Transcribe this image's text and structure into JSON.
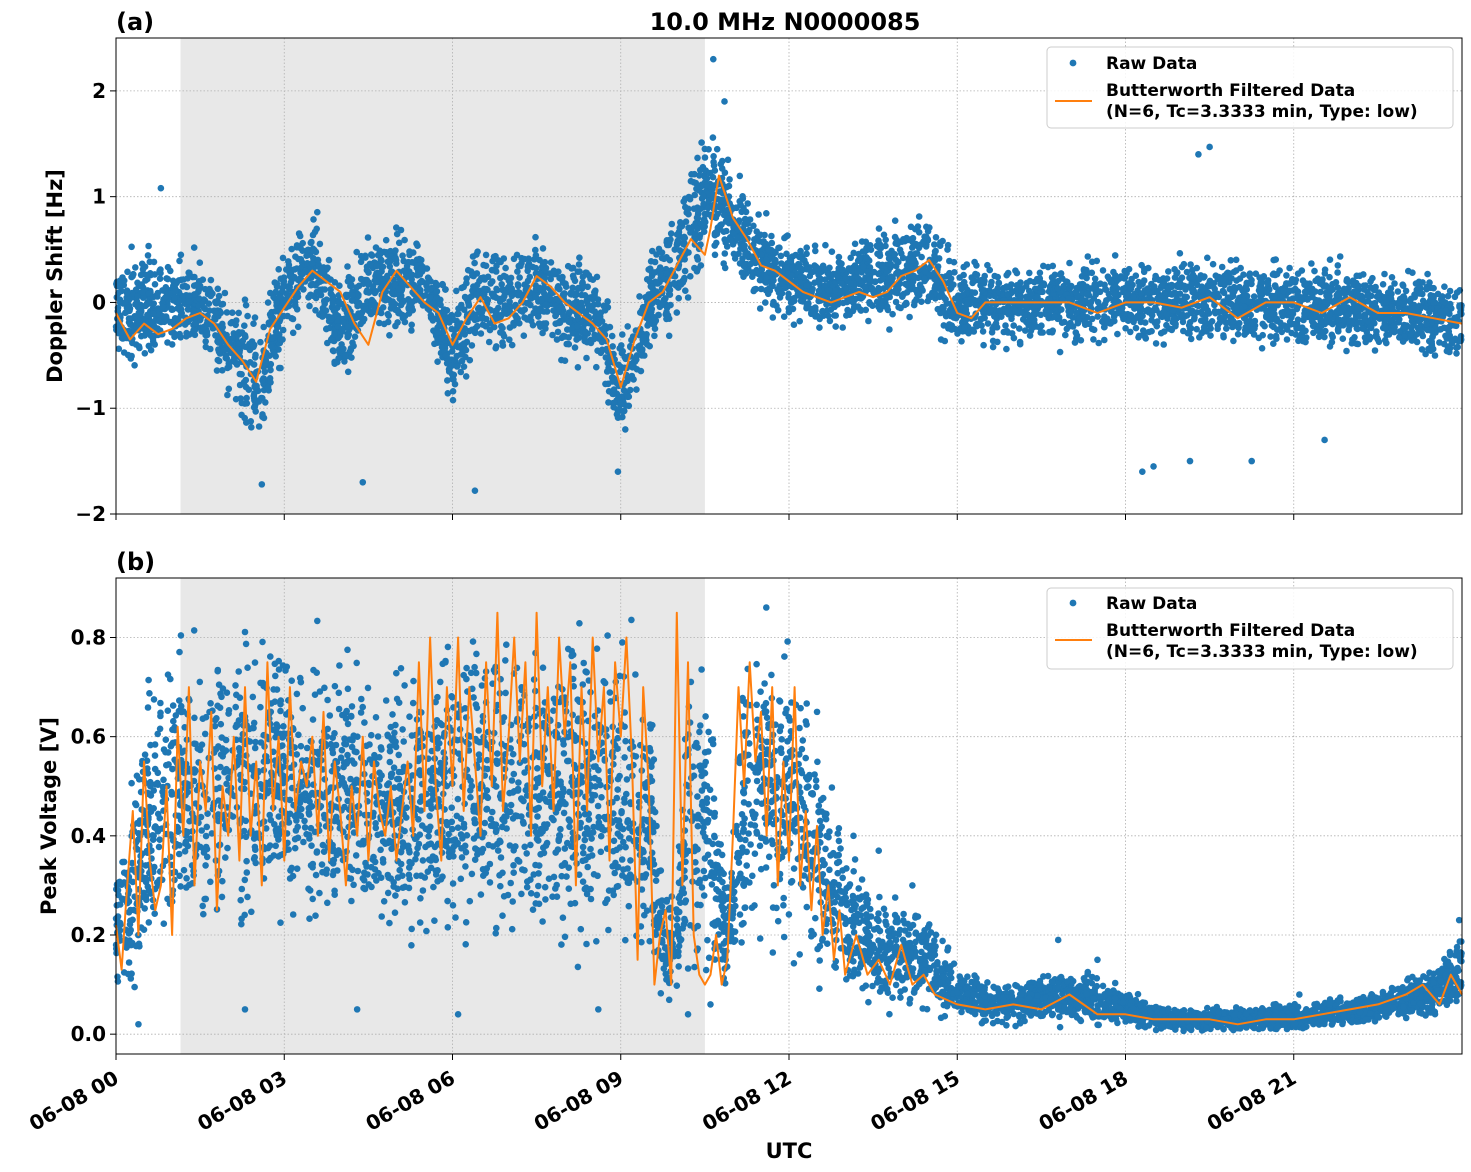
{
  "figure": {
    "title": "10.0 MHz N0000085",
    "xlabel": "UTC",
    "colors": {
      "raw": "#1f77b4",
      "filtered": "#ff7f0e",
      "shade": "#e8e8e8",
      "grid": "#b0b0b0"
    }
  },
  "legend": {
    "raw_label": "Raw Data",
    "filtered_label_line1": "Butterworth Filtered Data",
    "filtered_label_line2": "(N=6, Tc=3.3333 min, Type: low)"
  },
  "chart_data": [
    {
      "panel_label": "(a)",
      "type": "scatter",
      "title": "10.0 MHz N0000085",
      "ylabel": "Doppler Shift [Hz]",
      "xlabel": "UTC",
      "x_unit": "hours since 06-08 00:00 UTC",
      "xlim": [
        0,
        24
      ],
      "ylim": [
        -2,
        2.5
      ],
      "yticks": [
        -2,
        -1,
        0,
        1,
        2
      ],
      "ytick_labels": [
        "−2",
        "−1",
        "0",
        "1",
        "2"
      ],
      "shaded_interval": [
        1.15,
        10.5
      ],
      "grid": true,
      "legend_position": "top-right",
      "series": [
        {
          "name": "Raw Data",
          "style": "points",
          "envelope_x": [
            0,
            0.5,
            1,
            1.5,
            2,
            2.6,
            3,
            3.5,
            4,
            4.5,
            5,
            5.5,
            6,
            6.5,
            7,
            7.5,
            8,
            8.5,
            9,
            9.5,
            10,
            10.5,
            11,
            11.5,
            12,
            12.5,
            13,
            13.5,
            14,
            14.5,
            15,
            16,
            17,
            18,
            19,
            20,
            21,
            22,
            23,
            24
          ],
          "envelope_low": [
            -0.7,
            -0.7,
            -0.65,
            -0.6,
            -1.05,
            -1.55,
            -0.6,
            -0.2,
            -1.0,
            -0.4,
            -0.6,
            -0.2,
            -1.2,
            -0.6,
            -0.6,
            -0.4,
            -0.7,
            -0.6,
            -1.5,
            -0.6,
            -0.3,
            0.2,
            0.2,
            -0.2,
            -0.3,
            -0.3,
            -0.3,
            -0.3,
            -0.3,
            -0.3,
            -0.6,
            -0.5,
            -0.5,
            -0.5,
            -0.5,
            -0.5,
            -0.5,
            -0.6,
            -0.6,
            -0.7
          ],
          "envelope_high": [
            0.5,
            0.7,
            0.5,
            0.6,
            0.2,
            0.1,
            0.7,
            1.0,
            0.3,
            0.8,
            0.9,
            0.6,
            0.2,
            0.7,
            0.6,
            0.8,
            0.5,
            0.5,
            -0.2,
            0.6,
            1.0,
            1.9,
            1.4,
            0.9,
            0.7,
            0.6,
            0.6,
            0.8,
            0.9,
            1.0,
            0.5,
            0.5,
            0.5,
            0.5,
            0.6,
            0.5,
            0.5,
            0.5,
            0.4,
            0.3
          ],
          "outliers_x": [
            0.8,
            2.6,
            4.4,
            6.4,
            8.95,
            10.65,
            10.85,
            18.3,
            18.5,
            19.15,
            19.3,
            19.5,
            20.25,
            21.55
          ],
          "outliers_y": [
            1.08,
            -1.72,
            -1.7,
            -1.78,
            -1.6,
            2.3,
            1.9,
            -1.6,
            -1.55,
            -1.5,
            1.4,
            1.47,
            -1.5,
            -1.3
          ]
        },
        {
          "name": "Butterworth Filtered Data",
          "style": "line",
          "x": [
            0,
            0.25,
            0.5,
            0.75,
            1,
            1.25,
            1.5,
            1.75,
            2,
            2.25,
            2.5,
            2.75,
            3,
            3.25,
            3.5,
            3.75,
            4,
            4.25,
            4.5,
            4.75,
            5,
            5.25,
            5.5,
            5.75,
            6,
            6.25,
            6.5,
            6.75,
            7,
            7.25,
            7.5,
            7.75,
            8,
            8.25,
            8.5,
            8.75,
            9,
            9.25,
            9.5,
            9.75,
            10,
            10.25,
            10.5,
            10.6,
            10.75,
            11,
            11.25,
            11.5,
            11.75,
            12,
            12.25,
            12.5,
            12.75,
            13,
            13.25,
            13.5,
            13.75,
            14,
            14.25,
            14.5,
            14.75,
            15,
            15.25,
            15.5,
            16,
            16.5,
            17,
            17.5,
            18,
            18.5,
            19,
            19.5,
            20,
            20.5,
            21,
            21.5,
            22,
            22.5,
            23,
            23.5,
            24
          ],
          "y": [
            -0.1,
            -0.35,
            -0.2,
            -0.3,
            -0.25,
            -0.15,
            -0.1,
            -0.2,
            -0.4,
            -0.55,
            -0.75,
            -0.25,
            -0.05,
            0.15,
            0.3,
            0.2,
            0.1,
            -0.2,
            -0.4,
            0.1,
            0.3,
            0.15,
            0.0,
            -0.1,
            -0.4,
            -0.15,
            0.05,
            -0.2,
            -0.15,
            0.0,
            0.25,
            0.15,
            0.0,
            -0.1,
            -0.2,
            -0.35,
            -0.8,
            -0.35,
            0.0,
            0.1,
            0.35,
            0.6,
            0.45,
            0.7,
            1.2,
            0.8,
            0.6,
            0.35,
            0.3,
            0.2,
            0.1,
            0.05,
            0.0,
            0.05,
            0.1,
            0.05,
            0.1,
            0.25,
            0.3,
            0.4,
            0.2,
            -0.1,
            -0.15,
            0.0,
            0.0,
            0.0,
            0.0,
            -0.1,
            0.0,
            0.0,
            -0.05,
            0.05,
            -0.15,
            0.0,
            0.0,
            -0.1,
            0.05,
            -0.1,
            -0.1,
            -0.15,
            -0.2
          ]
        }
      ]
    },
    {
      "panel_label": "(b)",
      "type": "scatter",
      "ylabel": "Peak Voltage [V]",
      "xlabel": "UTC",
      "x_unit": "hours since 06-08 00:00 UTC",
      "xlim": [
        0,
        24
      ],
      "ylim": [
        -0.04,
        0.92
      ],
      "yticks": [
        0.0,
        0.2,
        0.4,
        0.6,
        0.8
      ],
      "ytick_labels": [
        "0.0",
        "0.2",
        "0.4",
        "0.6",
        "0.8"
      ],
      "xticks": [
        0,
        3,
        6,
        9,
        12,
        15,
        18,
        21
      ],
      "xtick_labels": [
        "06-08 00",
        "06-08 03",
        "06-08 06",
        "06-08 09",
        "06-08 12",
        "06-08 15",
        "06-08 18",
        "06-08 21"
      ],
      "shaded_interval": [
        1.15,
        10.5
      ],
      "grid": true,
      "legend_position": "top-right",
      "series": [
        {
          "name": "Raw Data",
          "style": "points",
          "envelope_x": [
            0,
            0.3,
            0.6,
            1,
            1.5,
            2,
            2.5,
            3,
            3.5,
            4,
            4.5,
            5,
            5.5,
            6,
            6.5,
            7,
            7.5,
            8,
            8.5,
            9,
            9.5,
            9.7,
            10,
            10.2,
            10.5,
            10.9,
            11.2,
            11.5,
            12,
            12.5,
            13,
            13.5,
            14,
            14.5,
            15,
            15.5,
            16,
            17,
            18,
            19,
            20,
            21,
            22,
            23,
            23.5,
            24
          ],
          "envelope_low": [
            0.05,
            0.05,
            0.08,
            0.1,
            0.1,
            0.12,
            0.15,
            0.15,
            0.1,
            0.15,
            0.12,
            0.1,
            0.1,
            0.12,
            0.1,
            0.1,
            0.12,
            0.1,
            0.12,
            0.1,
            0.08,
            0.05,
            0.06,
            0.05,
            0.04,
            0.08,
            0.1,
            0.1,
            0.08,
            0.05,
            0.03,
            0.03,
            0.03,
            0.02,
            0.02,
            0.01,
            0.01,
            0.01,
            0.0,
            0.0,
            0.0,
            0.0,
            0.01,
            0.02,
            0.02,
            0.03
          ],
          "envelope_high": [
            0.38,
            0.55,
            0.8,
            0.86,
            0.85,
            0.88,
            0.87,
            0.88,
            0.85,
            0.83,
            0.8,
            0.82,
            0.85,
            0.86,
            0.87,
            0.87,
            0.88,
            0.88,
            0.88,
            0.88,
            0.87,
            0.35,
            0.3,
            0.88,
            0.88,
            0.3,
            0.87,
            0.88,
            0.85,
            0.7,
            0.45,
            0.3,
            0.3,
            0.28,
            0.15,
            0.12,
            0.12,
            0.15,
            0.1,
            0.06,
            0.06,
            0.07,
            0.08,
            0.12,
            0.15,
            0.23
          ],
          "outliers_x": [
            0.4,
            2.3,
            4.3,
            6.1,
            8.6,
            10.2,
            10.6,
            12.5,
            13.15,
            13.6,
            14.2,
            16.8,
            17.5,
            21.1,
            23.95
          ],
          "outliers_y": [
            0.02,
            0.05,
            0.05,
            0.04,
            0.05,
            0.04,
            0.06,
            0.65,
            0.4,
            0.37,
            0.3,
            0.19,
            0.15,
            0.08,
            0.23
          ]
        },
        {
          "name": "Butterworth Filtered Data",
          "style": "line",
          "x": [
            0,
            0.1,
            0.2,
            0.3,
            0.4,
            0.5,
            0.6,
            0.7,
            0.8,
            0.9,
            1.0,
            1.1,
            1.2,
            1.3,
            1.4,
            1.5,
            1.6,
            1.7,
            1.8,
            1.9,
            2.0,
            2.1,
            2.2,
            2.3,
            2.4,
            2.5,
            2.6,
            2.7,
            2.8,
            2.9,
            3.0,
            3.1,
            3.2,
            3.3,
            3.4,
            3.5,
            3.6,
            3.7,
            3.8,
            3.9,
            4.0,
            4.1,
            4.2,
            4.3,
            4.4,
            4.5,
            4.6,
            4.7,
            4.8,
            4.9,
            5.0,
            5.1,
            5.2,
            5.3,
            5.4,
            5.5,
            5.6,
            5.7,
            5.8,
            5.9,
            6.0,
            6.1,
            6.2,
            6.3,
            6.4,
            6.5,
            6.6,
            6.7,
            6.8,
            6.9,
            7.0,
            7.1,
            7.2,
            7.3,
            7.4,
            7.5,
            7.6,
            7.7,
            7.8,
            7.9,
            8.0,
            8.1,
            8.2,
            8.3,
            8.4,
            8.5,
            8.6,
            8.7,
            8.8,
            8.9,
            9.0,
            9.1,
            9.2,
            9.3,
            9.4,
            9.5,
            9.6,
            9.7,
            9.8,
            9.9,
            10.0,
            10.1,
            10.2,
            10.3,
            10.4,
            10.5,
            10.6,
            10.7,
            10.8,
            10.9,
            11.0,
            11.1,
            11.2,
            11.3,
            11.4,
            11.5,
            11.6,
            11.7,
            11.8,
            11.9,
            12.0,
            12.1,
            12.2,
            12.3,
            12.4,
            12.5,
            12.6,
            12.7,
            12.8,
            12.9,
            13.0,
            13.2,
            13.4,
            13.6,
            13.8,
            14.0,
            14.2,
            14.4,
            14.6,
            14.8,
            15.0,
            15.5,
            16.0,
            16.5,
            17.0,
            17.5,
            18.0,
            18.5,
            19.0,
            19.5,
            20.0,
            20.5,
            21.0,
            21.5,
            22.0,
            22.5,
            23.0,
            23.3,
            23.6,
            23.8,
            24.0
          ],
          "y": [
            0.22,
            0.13,
            0.3,
            0.45,
            0.2,
            0.55,
            0.35,
            0.25,
            0.3,
            0.5,
            0.2,
            0.62,
            0.4,
            0.7,
            0.3,
            0.55,
            0.45,
            0.65,
            0.25,
            0.5,
            0.4,
            0.6,
            0.35,
            0.7,
            0.4,
            0.55,
            0.3,
            0.75,
            0.45,
            0.6,
            0.35,
            0.7,
            0.45,
            0.55,
            0.5,
            0.6,
            0.4,
            0.65,
            0.35,
            0.55,
            0.45,
            0.3,
            0.5,
            0.4,
            0.6,
            0.35,
            0.55,
            0.45,
            0.4,
            0.5,
            0.35,
            0.45,
            0.55,
            0.4,
            0.75,
            0.45,
            0.8,
            0.5,
            0.35,
            0.7,
            0.5,
            0.8,
            0.45,
            0.7,
            0.55,
            0.4,
            0.75,
            0.5,
            0.85,
            0.45,
            0.6,
            0.8,
            0.55,
            0.75,
            0.4,
            0.85,
            0.5,
            0.7,
            0.45,
            0.8,
            0.6,
            0.75,
            0.3,
            0.7,
            0.45,
            0.8,
            0.55,
            0.7,
            0.35,
            0.75,
            0.6,
            0.8,
            0.55,
            0.15,
            0.7,
            0.5,
            0.1,
            0.2,
            0.25,
            0.1,
            0.85,
            0.3,
            0.75,
            0.2,
            0.12,
            0.1,
            0.12,
            0.2,
            0.1,
            0.15,
            0.4,
            0.7,
            0.5,
            0.75,
            0.55,
            0.65,
            0.4,
            0.7,
            0.3,
            0.55,
            0.35,
            0.7,
            0.3,
            0.45,
            0.25,
            0.42,
            0.2,
            0.3,
            0.15,
            0.25,
            0.12,
            0.2,
            0.12,
            0.15,
            0.1,
            0.18,
            0.1,
            0.12,
            0.08,
            0.07,
            0.06,
            0.05,
            0.06,
            0.05,
            0.08,
            0.04,
            0.04,
            0.03,
            0.03,
            0.03,
            0.02,
            0.03,
            0.03,
            0.04,
            0.05,
            0.06,
            0.08,
            0.1,
            0.06,
            0.12,
            0.08
          ]
        }
      ]
    }
  ]
}
